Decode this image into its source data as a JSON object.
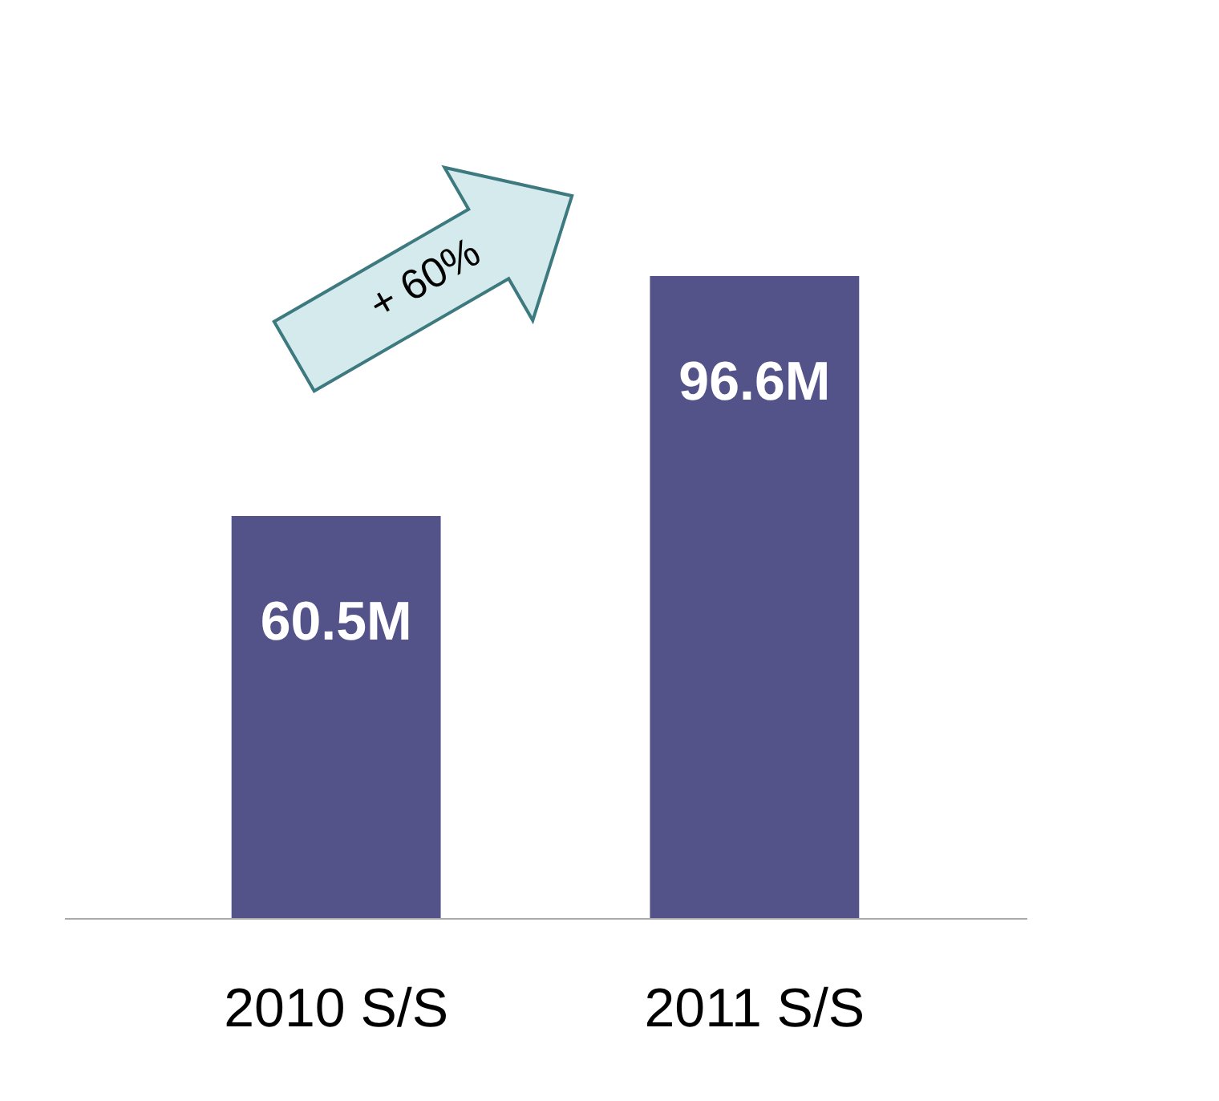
{
  "chart_data": {
    "type": "bar",
    "categories": [
      "2010 S/S",
      "2011 S/S"
    ],
    "values": [
      60.5,
      96.6
    ],
    "color": "#535389",
    "value_labels": [
      "60.5M",
      "96.6M"
    ],
    "annotations": [
      "+ 60%"
    ],
    "grid": false
  }
}
